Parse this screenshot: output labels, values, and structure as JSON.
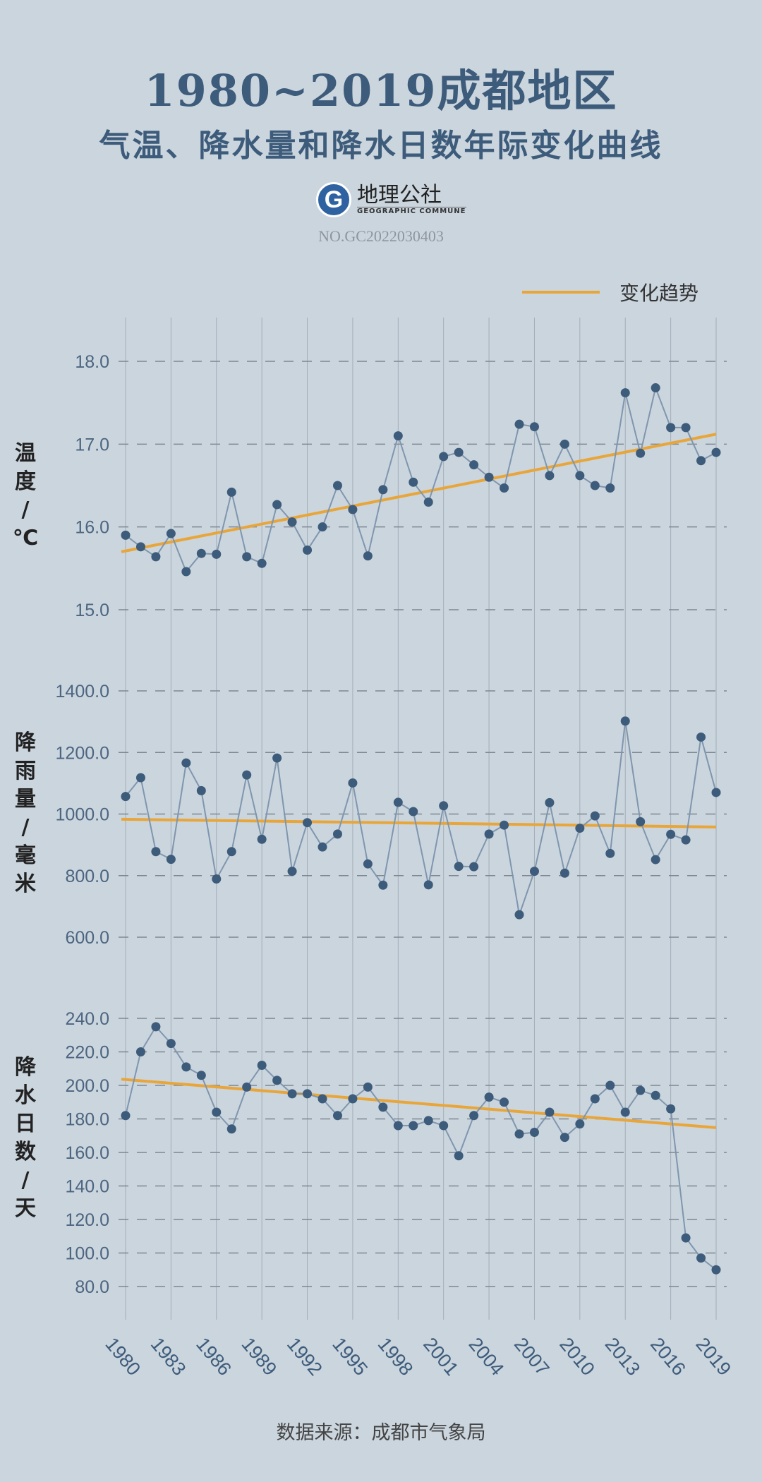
{
  "header": {
    "title_line1": "1980~2019成都地区",
    "title_line2": "气温、降水量和降水日数年际变化曲线",
    "logo_letter": "G",
    "logo_cn": "地理公社",
    "logo_en": "GEOGRAPHIC COMMUNE",
    "code": "NO.GC2022030403"
  },
  "legend": {
    "label": "变化趋势"
  },
  "source": "数据来源：成都市气象局",
  "colors": {
    "series": "#3d5b7a",
    "line": "#7f96ae",
    "trend": "#e8a63a",
    "grid": "#8a949d"
  },
  "chart_data": [
    {
      "type": "line",
      "ylabel": "温度/℃",
      "ylabel_chars": [
        "温",
        "度",
        "/",
        "℃"
      ],
      "ylim": [
        15.0,
        18.0
      ],
      "yticks": [
        "15.0",
        "16.0",
        "17.0",
        "18.0"
      ],
      "ytick_values": [
        15,
        16,
        17,
        18
      ],
      "x": [
        1980,
        1981,
        1982,
        1983,
        1984,
        1985,
        1986,
        1987,
        1988,
        1989,
        1990,
        1991,
        1992,
        1993,
        1994,
        1995,
        1996,
        1997,
        1998,
        1999,
        2000,
        2001,
        2002,
        2003,
        2004,
        2005,
        2006,
        2007,
        2008,
        2009,
        2010,
        2011,
        2012,
        2013,
        2014,
        2015,
        2016,
        2017,
        2018,
        2019
      ],
      "values": [
        15.9,
        15.76,
        15.64,
        15.92,
        15.46,
        15.68,
        15.67,
        16.42,
        15.64,
        15.56,
        16.27,
        16.06,
        15.72,
        16.0,
        16.5,
        16.21,
        15.65,
        16.45,
        17.1,
        16.54,
        16.3,
        16.85,
        16.9,
        16.75,
        16.6,
        16.47,
        17.24,
        17.21,
        16.62,
        17.0,
        16.62,
        16.5,
        16.47,
        17.62,
        16.89,
        17.68,
        17.2,
        17.2,
        16.8,
        16.9
      ],
      "trend": [
        15.7,
        17.12
      ]
    },
    {
      "type": "line",
      "ylabel": "降雨量/毫米",
      "ylabel_chars": [
        "降",
        "雨",
        "量",
        "/",
        "毫",
        "米"
      ],
      "ylim": [
        600,
        1400
      ],
      "yticks": [
        "600.0",
        "800.0",
        "1000.0",
        "1200.0",
        "1400.0"
      ],
      "ytick_values": [
        600,
        800,
        1000,
        1200,
        1400
      ],
      "values": [
        1057,
        1118,
        878,
        853,
        1166,
        1076,
        789,
        878,
        1127,
        918,
        1182,
        814,
        972,
        893,
        935,
        1101,
        838,
        769,
        1038,
        1008,
        770,
        1027,
        830,
        829,
        935,
        964,
        673,
        814,
        1037,
        808,
        954,
        994,
        872,
        1302,
        975,
        852,
        934,
        916,
        1250,
        1070
      ],
      "trend": [
        983,
        958
      ]
    },
    {
      "type": "line",
      "ylabel": "降水日数/天",
      "ylabel_chars": [
        "降",
        "水",
        "日",
        "数",
        "/",
        "天"
      ],
      "ylim": [
        80,
        240
      ],
      "yticks": [
        "80.0",
        "100.0",
        "120.0",
        "140.0",
        "160.0",
        "180.0",
        "200.0",
        "220.0",
        "240.0"
      ],
      "ytick_values": [
        80,
        100,
        120,
        140,
        160,
        180,
        200,
        220,
        240
      ],
      "values": [
        182,
        220,
        235,
        225,
        211,
        206,
        184,
        174,
        199,
        212,
        203,
        195,
        195,
        192,
        182,
        192,
        199,
        187,
        176,
        176,
        179,
        176,
        158,
        182,
        193,
        190,
        171,
        172,
        184,
        169,
        177,
        192,
        200,
        184,
        197,
        194,
        186,
        109,
        97,
        90
      ],
      "trend": [
        203.7,
        174.8
      ]
    }
  ],
  "xtick_labels": [
    "1980",
    "1983",
    "1986",
    "1989",
    "1992",
    "1995",
    "1998",
    "2001",
    "2004",
    "2007",
    "2010",
    "2013",
    "2016",
    "2019"
  ]
}
